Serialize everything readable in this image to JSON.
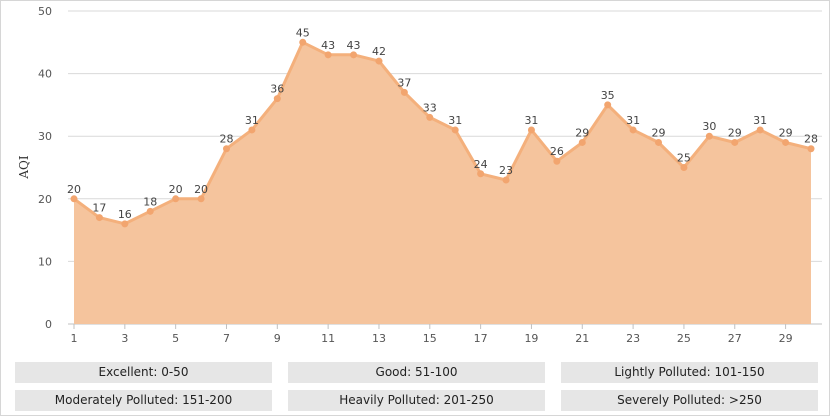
{
  "chart_data": {
    "type": "area",
    "ylabel": "AQI",
    "xlabel": "",
    "ylim": [
      0,
      50
    ],
    "xlim": [
      1,
      30
    ],
    "yticks": [
      0,
      10,
      20,
      30,
      40,
      50
    ],
    "xticks": [
      1,
      3,
      5,
      7,
      9,
      11,
      13,
      15,
      17,
      19,
      21,
      23,
      25,
      27,
      29
    ],
    "grid": "horizontal",
    "x": [
      1,
      2,
      3,
      4,
      5,
      6,
      7,
      8,
      9,
      10,
      11,
      12,
      13,
      14,
      15,
      16,
      17,
      18,
      19,
      20,
      21,
      22,
      23,
      24,
      25,
      26,
      27,
      28,
      29,
      30
    ],
    "values": [
      20,
      17,
      16,
      18,
      20,
      20,
      28,
      31,
      36,
      45,
      43,
      43,
      42,
      37,
      33,
      31,
      24,
      23,
      31,
      26,
      29,
      35,
      31,
      29,
      25,
      30,
      29,
      31,
      29,
      28
    ],
    "colors": {
      "line": "#f4b07c",
      "fill": "#f5c49d",
      "marker": "#f2a56f",
      "grid": "#d9d9d9"
    }
  },
  "legend": [
    "Excellent: 0-50",
    "Good: 51-100",
    "Lightly Polluted: 101-150",
    "Moderately Polluted: 151-200",
    "Heavily Polluted: 201-250",
    "Severely Polluted: >250"
  ]
}
